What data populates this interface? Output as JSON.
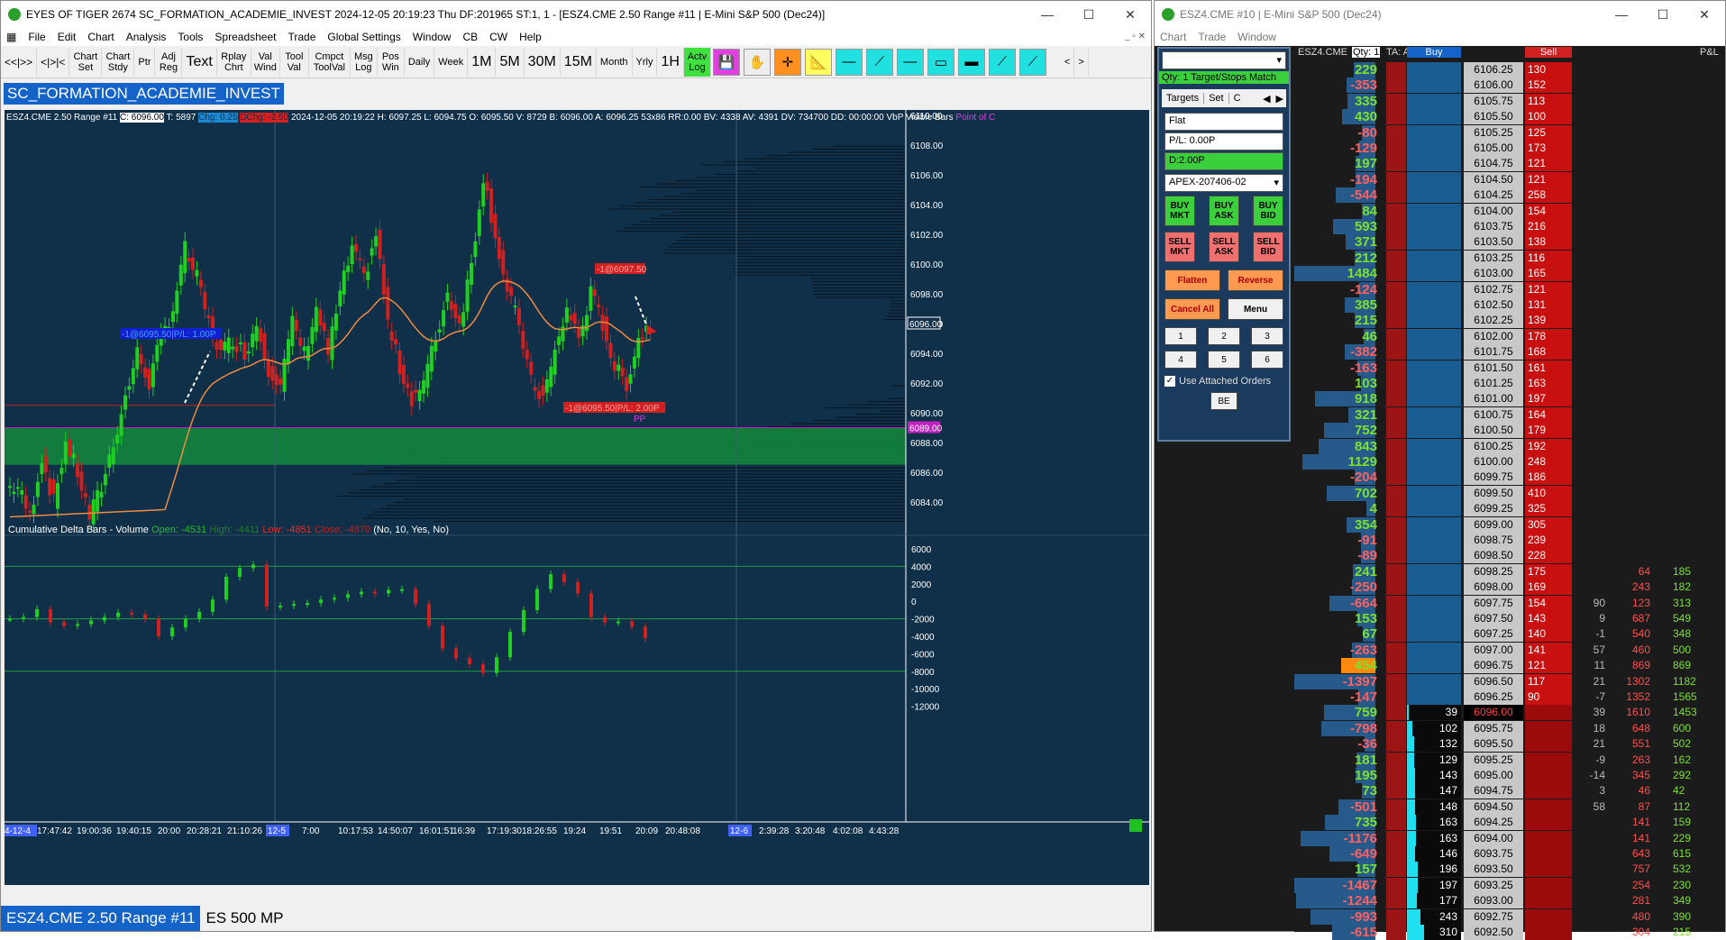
{
  "win1": {
    "title": "EYES OF TIGER 2674 SC_FORMATION_ACADEMIE_INVEST 2024-12-05  20:19:23 Thu DF:201965  ST:1, 1 - [ESZ4.CME  2.50 Range #11 | E-Mini S&P 500 (Dec24)]",
    "menu": [
      "File",
      "Edit",
      "Chart",
      "Analysis",
      "Tools",
      "Spreadsheet",
      "Trade",
      "Global Settings",
      "Window",
      "CB",
      "CW",
      "Help"
    ],
    "toolbar": [
      "<<|>>",
      "<|>|<",
      "Chart Set",
      "Chart Stdy",
      "Ptr",
      "Adj Reg",
      "Text",
      "Rplay Chrt",
      "Val Wind",
      "Tool Val",
      "Cmpct ToolVal",
      "Msg Log",
      "Pos Win",
      "Daily",
      "Week",
      "1M",
      "5M",
      "30M",
      "15M",
      "Month",
      "Yrly",
      "1H",
      "Actv Log"
    ],
    "study_name": "SC_FORMATION_ACADEMIE_INVEST",
    "info": "ESZ4.CME  2.50 Range #11",
    "info_c": "C: 6096.00",
    "info_t": "T: 5897",
    "info_chg": "Chg: 0.25",
    "info_dchg": "DChg: -2.50",
    "info_rest": "2024-12-05  20:19:22  H: 6097.25  L: 6094.75  O: 6095.50  V: 8729  B: 6096.00  A: 6096.25  53x86  RR:0.00  BV: 4338  AV: 4391  DV: 734700  DD: 00:00:00  VbP Visible Bars",
    "info_poc": "Point of C",
    "cdelta_label": "Cumulative Delta Bars - Volume",
    "cdelta_open": "Open: -4531",
    "cdelta_high": "High: -4411",
    "cdelta_low": "Low: -4851",
    "cdelta_close": "Close: -4870",
    "cdelta_params": "(No, 10, Yes, No)",
    "price_ticks": [
      "6110.00",
      "6108.00",
      "6106.00",
      "6104.00",
      "6102.00",
      "6100.00",
      "6098.00",
      "6096.00",
      "6094.00",
      "6092.00",
      "6090.00",
      "6088.00",
      "6086.00",
      "6084.00"
    ],
    "price_marker": "6096.00",
    "poc_marker": "6089.00",
    "delta_ticks": [
      "6000",
      "4000",
      "2000",
      "0",
      "-2000",
      "-4000",
      "-6000",
      "-8000",
      "-10000",
      "-12000"
    ],
    "time_ticks": [
      "4-12-4",
      "17:47:42",
      "19:00:36",
      "19:40:15",
      "20:00",
      "20:28:21",
      "21:10:26",
      "12-5",
      "7:00",
      "10:17:53",
      "14:50:07",
      "16:01:51",
      "16:39",
      "17:19:30",
      "18:26:55",
      "19:24",
      "19:51",
      "20:09",
      "20:48:08",
      "12-6",
      "2:39:28",
      "3:20:48",
      "4:02:08",
      "4:43:28"
    ],
    "order_labels": [
      "-1@6095.50|P/L: 1.00P",
      "-1@6097.50",
      "-1@6095.50|P/L: 2.00P",
      "PP"
    ],
    "tabs": [
      "ESZ4.CME  2.50 Range #11",
      "ES 500 MP"
    ]
  },
  "win2": {
    "title": "ESZ4.CME #10 | E-Mini S&P 500 (Dec24)",
    "menu": [
      "Chart",
      "Trade",
      "Window"
    ],
    "qty": "Qty: 1 Target/Stops Match",
    "tabs": [
      "Targets",
      "Set",
      "C"
    ],
    "pos": "Flat",
    "pl": "P/L: 0.00P",
    "d": "D:2.00P",
    "account": "APEX-207406-02",
    "buy_buttons": [
      "BUY MKT",
      "BUY ASK",
      "BUY BID"
    ],
    "sell_buttons": [
      "SELL MKT",
      "SELL ASK",
      "SELL BID"
    ],
    "flatten": "Flatten",
    "reverse": "Reverse",
    "cancel": "Cancel All",
    "menu_btn": "Menu",
    "nums": [
      "1",
      "2",
      "3",
      "4",
      "5",
      "6"
    ],
    "attached": "Use Attached Orders",
    "be": "BE",
    "hdr_sym": "ESZ4.CME",
    "hdr_qty": "Qty: 1",
    "hdr_ta": "TA: A",
    "hdr_buy": "Buy",
    "hdr_sell": "Sell",
    "hdr_pl": "P&L",
    "ladder": [
      [
        "229",
        "6106.25",
        "130",
        "",
        "",
        ""
      ],
      [
        "-353",
        "6106.00",
        "152",
        "",
        "",
        ""
      ],
      [
        "335",
        "6105.75",
        "113",
        "",
        "",
        ""
      ],
      [
        "430",
        "6105.50",
        "100",
        "",
        "",
        ""
      ],
      [
        "-80",
        "6105.25",
        "125",
        "",
        "",
        ""
      ],
      [
        "-129",
        "6105.00",
        "173",
        "",
        "",
        ""
      ],
      [
        "197",
        "6104.75",
        "121",
        "",
        "",
        ""
      ],
      [
        "-194",
        "6104.50",
        "121",
        "",
        "",
        ""
      ],
      [
        "-544",
        "6104.25",
        "258",
        "",
        "",
        ""
      ],
      [
        "84",
        "6104.00",
        "154",
        "",
        "",
        ""
      ],
      [
        "593",
        "6103.75",
        "216",
        "",
        "",
        ""
      ],
      [
        "371",
        "6103.50",
        "138",
        "",
        "",
        ""
      ],
      [
        "212",
        "6103.25",
        "116",
        "",
        "",
        ""
      ],
      [
        "1484",
        "6103.00",
        "165",
        "",
        "",
        ""
      ],
      [
        "-124",
        "6102.75",
        "121",
        "",
        "",
        ""
      ],
      [
        "385",
        "6102.50",
        "131",
        "",
        "",
        ""
      ],
      [
        "215",
        "6102.25",
        "139",
        "",
        "",
        ""
      ],
      [
        "46",
        "6102.00",
        "178",
        "",
        "",
        ""
      ],
      [
        "-382",
        "6101.75",
        "168",
        "",
        "",
        ""
      ],
      [
        "-163",
        "6101.50",
        "161",
        "",
        "",
        ""
      ],
      [
        "103",
        "6101.25",
        "163",
        "",
        "",
        ""
      ],
      [
        "918",
        "6101.00",
        "197",
        "",
        "",
        ""
      ],
      [
        "321",
        "6100.75",
        "164",
        "",
        "",
        ""
      ],
      [
        "752",
        "6100.50",
        "179",
        "",
        "",
        ""
      ],
      [
        "843",
        "6100.25",
        "192",
        "",
        "",
        ""
      ],
      [
        "1129",
        "6100.00",
        "248",
        "",
        "",
        ""
      ],
      [
        "-204",
        "6099.75",
        "186",
        "",
        "",
        ""
      ],
      [
        "702",
        "6099.50",
        "410",
        "",
        "",
        ""
      ],
      [
        "4",
        "6099.25",
        "325",
        "",
        "",
        ""
      ],
      [
        "354",
        "6099.00",
        "305",
        "",
        "",
        ""
      ],
      [
        "-91",
        "6098.75",
        "239",
        "",
        "",
        ""
      ],
      [
        "-89",
        "6098.50",
        "228",
        "",
        "",
        ""
      ],
      [
        "241",
        "6098.25",
        "175",
        "",
        "64",
        "185"
      ],
      [
        "-250",
        "6098.00",
        "169",
        "",
        "243",
        "182"
      ],
      [
        "-664",
        "6097.75",
        "154",
        "90",
        "123",
        "313"
      ],
      [
        "153",
        "6097.50",
        "143",
        "9",
        "687",
        "549"
      ],
      [
        "67",
        "6097.25",
        "140",
        "-1",
        "540",
        "348"
      ],
      [
        "-263",
        "6097.00",
        "141",
        "57",
        "460",
        "500"
      ],
      [
        "454",
        "6096.75",
        "121",
        "11",
        "869",
        "869"
      ],
      [
        "-1397",
        "6096.50",
        "117",
        "21",
        "1302",
        "1182"
      ],
      [
        "-147",
        "6096.25",
        "90",
        "-7",
        "1352",
        "1565"
      ],
      [
        "759",
        "6096.00",
        "",
        "39",
        "1610",
        "1453"
      ],
      [
        "-798",
        "6095.75",
        "",
        "18",
        "648",
        "600"
      ],
      [
        "-36",
        "6095.50",
        "",
        "21",
        "551",
        "502"
      ],
      [
        "181",
        "6095.25",
        "",
        "-9",
        "263",
        "162"
      ],
      [
        "195",
        "6095.00",
        "",
        "-14",
        "345",
        "292"
      ],
      [
        "73",
        "6094.75",
        "",
        "3",
        "46",
        "42"
      ],
      [
        "-501",
        "6094.50",
        "",
        "58",
        "87",
        "112"
      ],
      [
        "735",
        "6094.25",
        "",
        "",
        "141",
        "159"
      ],
      [
        "-1176",
        "6094.00",
        "",
        "",
        "141",
        "229"
      ],
      [
        "-649",
        "6093.75",
        "",
        "",
        "643",
        "615"
      ],
      [
        "157",
        "6093.50",
        "",
        "",
        "757",
        "532"
      ],
      [
        "-1467",
        "6093.25",
        "",
        "",
        "254",
        "230"
      ],
      [
        "-1244",
        "6093.00",
        "",
        "",
        "281",
        "349"
      ],
      [
        "-993",
        "6092.75",
        "",
        "",
        "480",
        "390"
      ],
      [
        "-615",
        "6092.50",
        "",
        "",
        "304",
        "215"
      ]
    ],
    "bids": [
      "39",
      "102",
      "132",
      "129",
      "143",
      "147",
      "148",
      "163",
      "163",
      "146",
      "196",
      "197",
      "177",
      "243",
      "310"
    ]
  }
}
